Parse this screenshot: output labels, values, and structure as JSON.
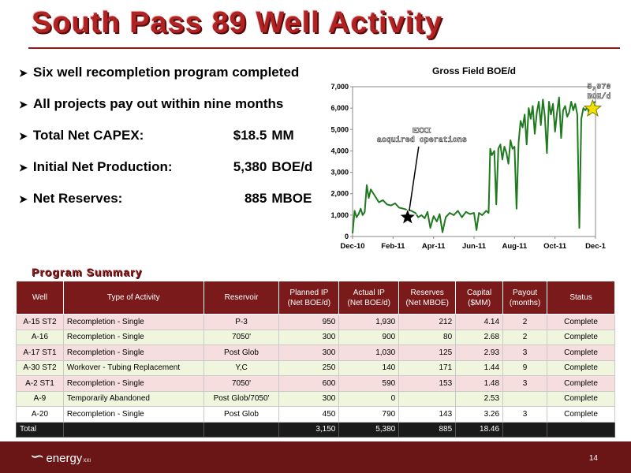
{
  "title": "South Pass 89 Well Activity",
  "bullets": [
    {
      "label": "Six well recompletion program completed",
      "value": "",
      "unit": ""
    },
    {
      "label": "All projects pay out within nine months",
      "value": "",
      "unit": ""
    },
    {
      "label": "Total Net CAPEX:",
      "value": "$18.5",
      "unit": "MM"
    },
    {
      "label": "Initial Net Production:",
      "value": "5,380",
      "unit": "BOE/d"
    },
    {
      "label": "Net Reserves:",
      "value": "885",
      "unit": "MBOE"
    }
  ],
  "chart_data": {
    "type": "line",
    "title": "Gross Field BOE/d",
    "ylim": [
      0,
      7000
    ],
    "yticks": [
      0,
      1000,
      2000,
      3000,
      4000,
      5000,
      6000,
      7000
    ],
    "ytick_labels": [
      "0",
      "1,000",
      "2,000",
      "3,000",
      "4,000",
      "5,000",
      "6,000",
      "7,000"
    ],
    "xticks": [
      "Dec-10",
      "Feb-11",
      "Apr-11",
      "Jun-11",
      "Aug-11",
      "Oct-11",
      "Dec-1"
    ],
    "series_color": "#1f7a1f",
    "series": [
      {
        "values": [
          [
            0.0,
            150
          ],
          [
            0.05,
            1200
          ],
          [
            0.1,
            900
          ],
          [
            0.15,
            1050
          ],
          [
            0.2,
            1300
          ],
          [
            0.25,
            1000
          ],
          [
            0.3,
            1150
          ],
          [
            0.35,
            2400
          ],
          [
            0.4,
            1800
          ],
          [
            0.45,
            2200
          ],
          [
            0.55,
            1900
          ],
          [
            0.65,
            1600
          ],
          [
            0.75,
            1700
          ],
          [
            0.85,
            1500
          ],
          [
            0.95,
            1450
          ],
          [
            1.05,
            1550
          ],
          [
            1.15,
            1350
          ],
          [
            1.25,
            1300
          ],
          [
            1.35,
            1250
          ],
          [
            1.45,
            1200
          ],
          [
            1.55,
            1100
          ],
          [
            1.62,
            900
          ],
          [
            1.7,
            1000
          ],
          [
            1.78,
            850
          ],
          [
            1.85,
            1150
          ],
          [
            1.92,
            400
          ],
          [
            2.0,
            950
          ],
          [
            2.08,
            700
          ],
          [
            2.15,
            1050
          ],
          [
            2.22,
            200
          ],
          [
            2.3,
            900
          ],
          [
            2.4,
            1100
          ],
          [
            2.5,
            1000
          ],
          [
            2.6,
            1200
          ],
          [
            2.7,
            900
          ],
          [
            2.8,
            1150
          ],
          [
            2.9,
            1050
          ],
          [
            3.0,
            1100
          ],
          [
            3.06,
            300
          ],
          [
            3.12,
            1100
          ],
          [
            3.2,
            1000
          ],
          [
            3.3,
            1200
          ],
          [
            3.36,
            1100
          ],
          [
            3.4,
            4100
          ],
          [
            3.44,
            3800
          ],
          [
            3.5,
            4000
          ],
          [
            3.55,
            1500
          ],
          [
            3.6,
            4100
          ],
          [
            3.65,
            4300
          ],
          [
            3.7,
            3600
          ],
          [
            3.75,
            4200
          ],
          [
            3.8,
            3900
          ],
          [
            3.85,
            3400
          ],
          [
            3.9,
            4500
          ],
          [
            3.95,
            4100
          ],
          [
            4.0,
            4200
          ],
          [
            4.05,
            1300
          ],
          [
            4.1,
            4400
          ],
          [
            4.15,
            5400
          ],
          [
            4.2,
            5100
          ],
          [
            4.25,
            5700
          ],
          [
            4.3,
            4300
          ],
          [
            4.35,
            6000
          ],
          [
            4.4,
            5500
          ],
          [
            4.45,
            6100
          ],
          [
            4.5,
            4800
          ],
          [
            4.55,
            5800
          ],
          [
            4.6,
            6300
          ],
          [
            4.65,
            5200
          ],
          [
            4.7,
            6400
          ],
          [
            4.75,
            5600
          ],
          [
            4.8,
            3900
          ],
          [
            4.85,
            6300
          ],
          [
            4.9,
            5700
          ],
          [
            4.95,
            6200
          ],
          [
            5.0,
            4900
          ],
          [
            5.05,
            5800
          ],
          [
            5.1,
            6500
          ],
          [
            5.15,
            4600
          ],
          [
            5.2,
            5900
          ],
          [
            5.25,
            6100
          ],
          [
            5.3,
            5600
          ],
          [
            5.35,
            5800
          ],
          [
            5.4,
            6300
          ],
          [
            5.45,
            5900
          ],
          [
            5.5,
            6200
          ],
          [
            5.55,
            5700
          ],
          [
            5.6,
            400
          ],
          [
            5.65,
            5500
          ],
          [
            5.7,
            6000
          ],
          [
            5.75,
            5900
          ],
          [
            5.8,
            6050
          ],
          [
            5.85,
            5700
          ],
          [
            5.9,
            6000
          ],
          [
            5.95,
            6250
          ],
          [
            6.0,
            6300
          ]
        ]
      }
    ],
    "annotations": [
      {
        "text": "EXXI acquired operations",
        "lines": [
          "EXXI",
          "acquired operations"
        ],
        "x": 1.36,
        "y": 900
      },
      {
        "text": "5,970 BOE/d",
        "lines": [
          "5,970",
          "BOE/d"
        ],
        "x": 5.93,
        "y": 5970
      }
    ]
  },
  "program_summary_title": "Program Summary",
  "table": {
    "headers": [
      "Well",
      "Type of Activity",
      "Reservoir",
      "Planned IP\n(Net BOE/d)",
      "Actual IP\n(Net BOE/d)",
      "Reserves\n(Net MBOE)",
      "Capital\n($MM)",
      "Payout\n(months)",
      "Status"
    ],
    "rows": [
      {
        "well": "A-15 ST2",
        "activity": "Recompletion - Single",
        "reservoir": "P-3",
        "planned": "950",
        "actual": "1,930",
        "reserves": "212",
        "capital": "4.14",
        "payout": "2",
        "status": "Complete"
      },
      {
        "well": "A-16",
        "activity": "Recompletion - Single",
        "reservoir": "7050'",
        "planned": "300",
        "actual": "900",
        "reserves": "80",
        "capital": "2.68",
        "payout": "2",
        "status": "Complete"
      },
      {
        "well": "A-17 ST1",
        "activity": "Recompletion - Single",
        "reservoir": "Post Glob",
        "planned": "300",
        "actual": "1,030",
        "reserves": "125",
        "capital": "2.93",
        "payout": "3",
        "status": "Complete"
      },
      {
        "well": "A-30 ST2",
        "activity": "Workover - Tubing Replacement",
        "reservoir": "Y,C",
        "planned": "250",
        "actual": "140",
        "reserves": "171",
        "capital": "1.44",
        "payout": "9",
        "status": "Complete"
      },
      {
        "well": "A-2 ST1",
        "activity": "Recompletion - Single",
        "reservoir": "7050'",
        "planned": "600",
        "actual": "590",
        "reserves": "153",
        "capital": "1.48",
        "payout": "3",
        "status": "Complete"
      },
      {
        "well": "A-9",
        "activity": "Temporarily Abandoned",
        "reservoir": "Post Glob/7050'",
        "planned": "300",
        "actual": "0",
        "reserves": "",
        "capital": "2.53",
        "payout": "",
        "status": "Complete"
      },
      {
        "well": "A-20",
        "activity": "Recompletion - Single",
        "reservoir": "Post Glob",
        "planned": "450",
        "actual": "790",
        "reserves": "143",
        "capital": "3.26",
        "payout": "3",
        "status": "Complete"
      }
    ],
    "row_colors": [
      "pink",
      "green",
      "pink",
      "green",
      "pink",
      "green",
      "white"
    ],
    "total": {
      "label": "Total",
      "planned": "3,150",
      "actual": "5,380",
      "reserves": "885",
      "capital": "18.46"
    }
  },
  "footer": {
    "logo_text": "energy",
    "logo_sup": "XXI",
    "page_number": "14",
    "color": "#6b1616"
  }
}
